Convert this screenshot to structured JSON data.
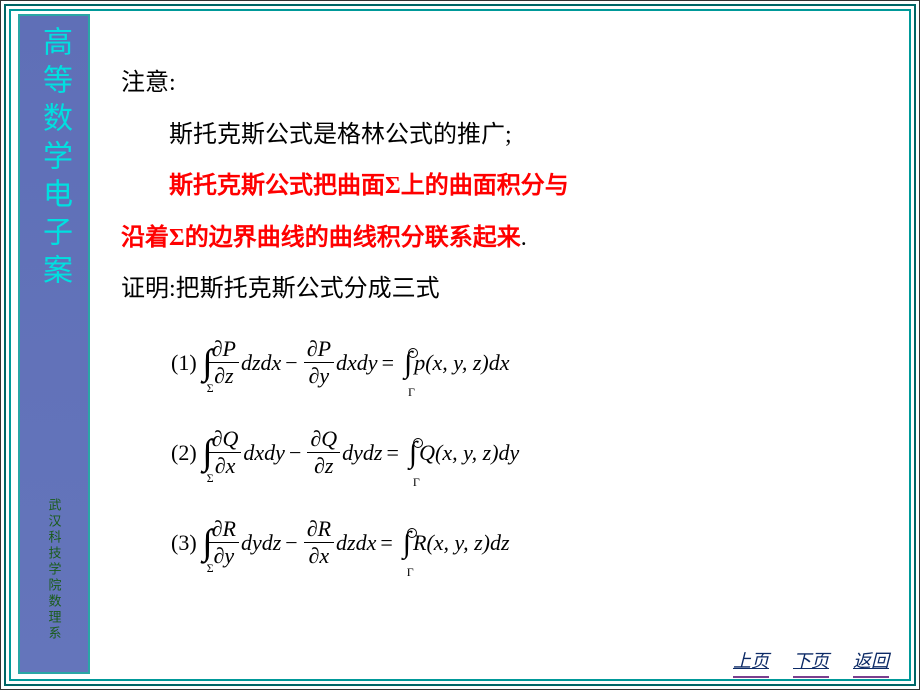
{
  "sidebar": {
    "title": "高等数学电子案",
    "subtitle": "武汉科技学院数理系"
  },
  "content": {
    "note_label": "注意:",
    "line1": "斯托克斯公式是格林公式的推广;",
    "line2a": "斯托克斯公式把曲面Σ上的曲面积分与",
    "line2b": "沿着Σ的边界曲线的曲线积分联系起来",
    "line2b_tail": ".",
    "proof_label": "证明:把斯托克斯公式分成三式"
  },
  "formulas": {
    "f1": {
      "idx": "(1)",
      "n1_top": "∂P",
      "n1_bot": "∂z",
      "d1": "dzdx",
      "op": "−",
      "n2_top": "∂P",
      "n2_bot": "∂y",
      "d2": "dxdy",
      "eq": "=",
      "rhs": "p(x, y, z)dx"
    },
    "f2": {
      "idx": "(2)",
      "n1_top": "∂Q",
      "n1_bot": "∂x",
      "d1": "dxdy",
      "op": "−",
      "n2_top": "∂Q",
      "n2_bot": "∂z",
      "d2": "dydz",
      "eq": "=",
      "rhs": "Q(x, y, z)dy"
    },
    "f3": {
      "idx": "(3)",
      "n1_top": "∂R",
      "n1_bot": "∂y",
      "d1": "dydz",
      "op": "−",
      "n2_top": "∂R",
      "n2_bot": "∂x",
      "d2": "dzdx",
      "eq": "=",
      "rhs": "R(x, y, z)dz"
    },
    "sigma": "Σ",
    "gamma": "Γ"
  },
  "nav": {
    "prev": "上页",
    "next": "下页",
    "back": "返回"
  },
  "colors": {
    "sidebar_bg": "#6272b9",
    "sidebar_title": "#00e0e0",
    "sidebar_sub": "#1a5c1a",
    "frame": "#009999",
    "red": "#ff0000",
    "nav_text": "#0c2a66",
    "nav_underline": "#7b3f8f",
    "background": "#ffffff"
  }
}
